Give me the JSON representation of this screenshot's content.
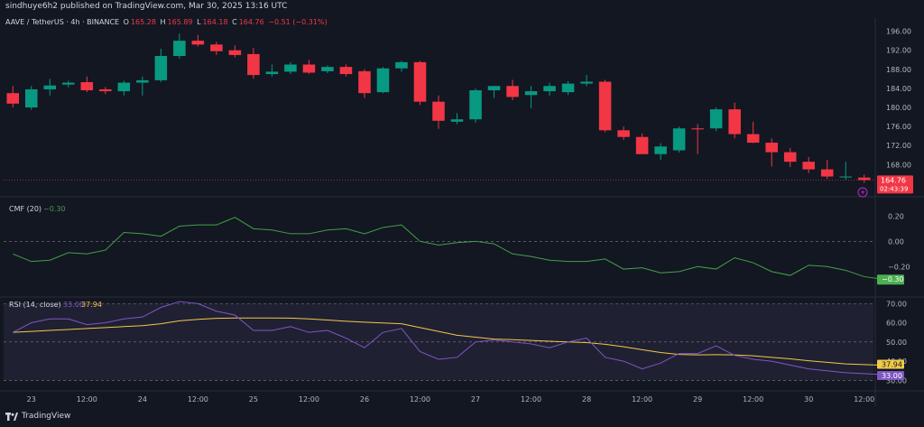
{
  "header": {
    "published": "sindhuye6h2 published on TradingView.com, Mar 30, 2025 13:16 UTC"
  },
  "legend": {
    "symbol": "AAVE / TetherUS · 4h · BINANCE",
    "o_label": "O",
    "o_value": "165.28",
    "h_label": "H",
    "h_value": "165.89",
    "l_label": "L",
    "l_value": "164.18",
    "c_label": "C",
    "c_value": "164.76",
    "change": "−0.51 (−0.31%)"
  },
  "footer": {
    "brand": "TradingView"
  },
  "colors": {
    "background": "#131722",
    "up": "#089981",
    "down": "#f23645",
    "cmf_line": "#43a047",
    "rsi_line": "#7e57c2",
    "rsi_ma": "#f0c94a",
    "grid_text": "#b2b5be",
    "rsi_band": "#2a2740"
  },
  "chart_data": [
    {
      "type": "candlestick",
      "title": "AAVE / TetherUS · 4h · BINANCE",
      "ylim": [
        162,
        198
      ],
      "y_ticks": [
        "196.00",
        "192.00",
        "188.00",
        "184.00",
        "180.00",
        "176.00",
        "172.00",
        "168.00"
      ],
      "last_price_label": "164.76",
      "countdown_label": "02:43:39",
      "candles": [
        {
          "o": 183.0,
          "h": 184.5,
          "l": 180.0,
          "c": 180.8
        },
        {
          "o": 180.0,
          "h": 184.5,
          "l": 179.5,
          "c": 183.8
        },
        {
          "o": 183.8,
          "h": 186.0,
          "l": 182.5,
          "c": 184.6
        },
        {
          "o": 184.8,
          "h": 185.6,
          "l": 184.2,
          "c": 185.2
        },
        {
          "o": 185.3,
          "h": 186.5,
          "l": 183.2,
          "c": 183.6
        },
        {
          "o": 183.8,
          "h": 184.3,
          "l": 182.8,
          "c": 183.4
        },
        {
          "o": 183.4,
          "h": 185.6,
          "l": 182.5,
          "c": 185.2
        },
        {
          "o": 185.2,
          "h": 186.5,
          "l": 182.5,
          "c": 185.7
        },
        {
          "o": 185.7,
          "h": 192.3,
          "l": 185.3,
          "c": 190.8
        },
        {
          "o": 190.8,
          "h": 195.5,
          "l": 190.2,
          "c": 194.0
        },
        {
          "o": 194.0,
          "h": 195.2,
          "l": 192.8,
          "c": 193.2
        },
        {
          "o": 193.2,
          "h": 193.8,
          "l": 191.0,
          "c": 191.8
        },
        {
          "o": 192.0,
          "h": 193.0,
          "l": 190.5,
          "c": 191.0
        },
        {
          "o": 191.2,
          "h": 192.5,
          "l": 186.0,
          "c": 186.8
        },
        {
          "o": 187.0,
          "h": 189.0,
          "l": 186.5,
          "c": 187.5
        },
        {
          "o": 187.5,
          "h": 189.5,
          "l": 187.0,
          "c": 189.0
        },
        {
          "o": 189.0,
          "h": 190.0,
          "l": 187.0,
          "c": 187.3
        },
        {
          "o": 187.6,
          "h": 188.8,
          "l": 187.2,
          "c": 188.5
        },
        {
          "o": 188.5,
          "h": 189.0,
          "l": 186.5,
          "c": 187.0
        },
        {
          "o": 187.6,
          "h": 188.0,
          "l": 182.0,
          "c": 183.0
        },
        {
          "o": 183.2,
          "h": 188.5,
          "l": 183.0,
          "c": 188.2
        },
        {
          "o": 188.2,
          "h": 189.8,
          "l": 187.5,
          "c": 189.5
        },
        {
          "o": 189.5,
          "h": 189.8,
          "l": 180.5,
          "c": 181.2
        },
        {
          "o": 181.2,
          "h": 182.5,
          "l": 175.5,
          "c": 177.2
        },
        {
          "o": 177.0,
          "h": 178.8,
          "l": 176.5,
          "c": 177.5
        },
        {
          "o": 177.5,
          "h": 184.0,
          "l": 176.8,
          "c": 183.6
        },
        {
          "o": 183.6,
          "h": 184.5,
          "l": 182.0,
          "c": 184.5
        },
        {
          "o": 184.5,
          "h": 185.8,
          "l": 181.5,
          "c": 182.2
        },
        {
          "o": 182.6,
          "h": 184.5,
          "l": 179.8,
          "c": 183.4
        },
        {
          "o": 183.4,
          "h": 185.2,
          "l": 182.5,
          "c": 184.5
        },
        {
          "o": 183.2,
          "h": 185.5,
          "l": 182.6,
          "c": 185.0
        },
        {
          "o": 185.0,
          "h": 186.8,
          "l": 184.5,
          "c": 185.4
        },
        {
          "o": 185.4,
          "h": 185.8,
          "l": 174.8,
          "c": 175.2
        },
        {
          "o": 175.2,
          "h": 176.0,
          "l": 173.2,
          "c": 173.8
        },
        {
          "o": 173.8,
          "h": 174.5,
          "l": 170.2,
          "c": 170.2
        },
        {
          "o": 170.2,
          "h": 172.5,
          "l": 169.0,
          "c": 171.8
        },
        {
          "o": 171.0,
          "h": 176.0,
          "l": 170.5,
          "c": 175.6
        },
        {
          "o": 175.6,
          "h": 176.5,
          "l": 170.2,
          "c": 175.4
        },
        {
          "o": 175.6,
          "h": 180.0,
          "l": 175.0,
          "c": 179.6
        },
        {
          "o": 179.6,
          "h": 181.0,
          "l": 173.5,
          "c": 174.4
        },
        {
          "o": 174.4,
          "h": 177.0,
          "l": 172.5,
          "c": 172.6
        },
        {
          "o": 172.6,
          "h": 173.5,
          "l": 167.6,
          "c": 170.6
        },
        {
          "o": 170.6,
          "h": 171.5,
          "l": 167.5,
          "c": 168.6
        },
        {
          "o": 168.6,
          "h": 169.6,
          "l": 166.2,
          "c": 167.0
        },
        {
          "o": 167.0,
          "h": 169.0,
          "l": 165.0,
          "c": 165.5
        },
        {
          "o": 165.3,
          "h": 168.6,
          "l": 164.8,
          "c": 165.5
        },
        {
          "o": 165.28,
          "h": 165.89,
          "l": 164.18,
          "c": 164.76
        }
      ]
    },
    {
      "type": "line",
      "title": "CMF (20)",
      "value_label": "−0.30",
      "ylim": [
        -0.42,
        0.31
      ],
      "y_ticks": [
        "0.20",
        "0.00",
        "−0.20"
      ],
      "series": [
        {
          "name": "CMF (20)",
          "values": [
            -0.1,
            -0.16,
            -0.15,
            -0.09,
            -0.1,
            -0.07,
            0.07,
            0.06,
            0.04,
            0.12,
            0.13,
            0.13,
            0.19,
            0.1,
            0.09,
            0.06,
            0.06,
            0.09,
            0.1,
            0.06,
            0.11,
            0.13,
            0.0,
            -0.03,
            -0.01,
            0.0,
            -0.02,
            -0.1,
            -0.12,
            -0.15,
            -0.16,
            -0.16,
            -0.14,
            -0.22,
            -0.21,
            -0.25,
            -0.24,
            -0.2,
            -0.22,
            -0.13,
            -0.17,
            -0.24,
            -0.27,
            -0.19,
            -0.2,
            -0.23,
            -0.28,
            -0.3
          ]
        }
      ]
    },
    {
      "type": "line",
      "title": "RSI (14, close)",
      "rsi_label": "33.00",
      "ma_label": "37.94",
      "ylim": [
        25,
        72
      ],
      "y_ticks": [
        "70.00",
        "60.00",
        "50.00",
        "40.00",
        "30.00"
      ],
      "bands": [
        30,
        50,
        70
      ],
      "series": [
        {
          "name": "RSI",
          "values": [
            55,
            60,
            62,
            62,
            59,
            60,
            62,
            63,
            68,
            71,
            70,
            66,
            64,
            56,
            56,
            58,
            55,
            56,
            52,
            47,
            55,
            57,
            45,
            41,
            42,
            50,
            51,
            50,
            49,
            47,
            50,
            52,
            42,
            40,
            36,
            39,
            44,
            44,
            48,
            43,
            41,
            40,
            38,
            36,
            35,
            34,
            33.5,
            33.0
          ]
        },
        {
          "name": "RSI-based MA",
          "values": [
            55,
            55.5,
            56,
            56.5,
            57,
            57.5,
            58,
            58.5,
            59.5,
            61,
            61.8,
            62.3,
            62.5,
            62.5,
            62.5,
            62.4,
            62.0,
            61.4,
            60.8,
            60.3,
            59.9,
            59.5,
            57.5,
            55.5,
            53.5,
            52.5,
            51.5,
            51.2,
            50.8,
            50.4,
            50.0,
            49.7,
            48.8,
            47.5,
            46.0,
            44.5,
            43.5,
            43.3,
            43.4,
            43.3,
            42.8,
            42.0,
            41.2,
            40.2,
            39.4,
            38.6,
            38.2,
            37.94
          ]
        }
      ]
    }
  ],
  "x_axis": {
    "labels": [
      "23",
      "12:00",
      "24",
      "12:00",
      "25",
      "12:00",
      "26",
      "12:00",
      "27",
      "12:00",
      "28",
      "12:00",
      "29",
      "12:00",
      "30",
      "12:00"
    ],
    "label_positions_bar_index": [
      1,
      4,
      7,
      10,
      13,
      16,
      19,
      22,
      25,
      28,
      31,
      34,
      37,
      40,
      43,
      46
    ]
  }
}
